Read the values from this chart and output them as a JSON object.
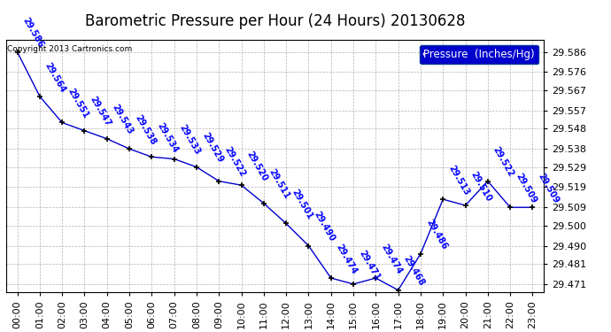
{
  "title": "Barometric Pressure per Hour (24 Hours) 20130628",
  "copyright": "Copyright 2013 Cartronics.com",
  "legend_label": "Pressure  (Inches/Hg)",
  "hours": [
    "00:00",
    "01:00",
    "02:00",
    "03:00",
    "04:00",
    "05:00",
    "06:00",
    "07:00",
    "08:00",
    "09:00",
    "10:00",
    "11:00",
    "12:00",
    "13:00",
    "14:00",
    "15:00",
    "16:00",
    "17:00",
    "18:00",
    "19:00",
    "20:00",
    "21:00",
    "22:00",
    "23:00"
  ],
  "values": [
    29.586,
    29.564,
    29.551,
    29.547,
    29.543,
    29.538,
    29.534,
    29.533,
    29.529,
    29.522,
    29.52,
    29.511,
    29.501,
    29.49,
    29.474,
    29.471,
    29.474,
    29.468,
    29.486,
    29.513,
    29.51,
    29.522,
    29.509,
    29.509
  ],
  "line_color": "#0000cc",
  "marker_color": "#000000",
  "label_color": "#0000ff",
  "bg_color": "#ffffff",
  "grid_color": "#aaaaaa",
  "ylim_min": 29.467,
  "ylim_max": 29.592,
  "yticks": [
    29.471,
    29.481,
    29.49,
    29.5,
    29.509,
    29.519,
    29.529,
    29.538,
    29.548,
    29.557,
    29.567,
    29.576,
    29.586
  ],
  "title_fontsize": 12,
  "label_fontsize": 7,
  "tick_fontsize": 8,
  "legend_fontsize": 8.5,
  "copyright_fontsize": 6.5
}
